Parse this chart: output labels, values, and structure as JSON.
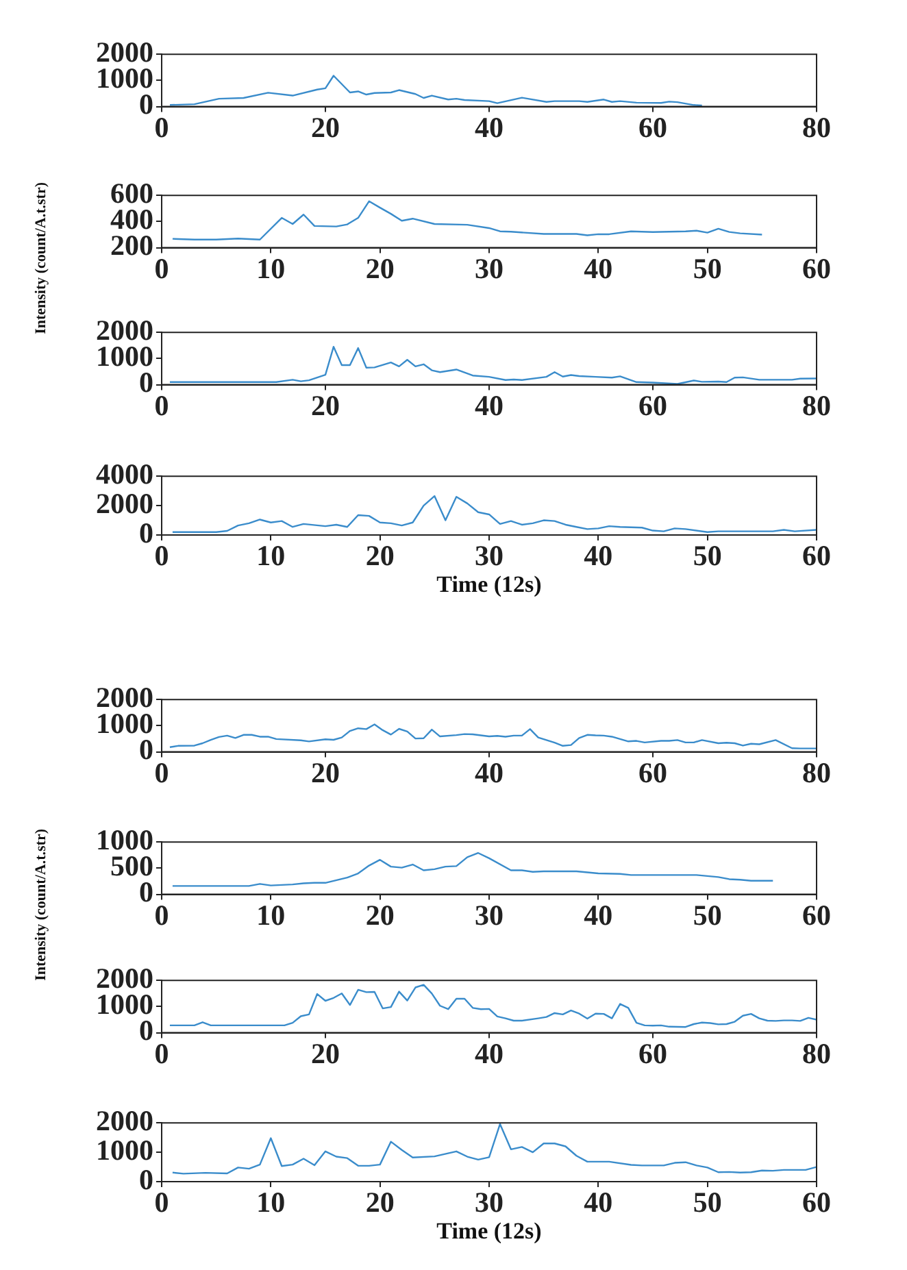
{
  "chart_data": [
    {
      "type": "line",
      "color": "#3a8ccb",
      "marker": "none",
      "grid": false,
      "legend": false,
      "xlim": [
        0,
        80
      ],
      "xticks": [
        0,
        20,
        40,
        60,
        80
      ],
      "ylim": [
        0,
        2000
      ],
      "yticks": [
        0,
        1000,
        2000
      ],
      "x": [
        1,
        4,
        7,
        10,
        13,
        16,
        19,
        20,
        21,
        23,
        24,
        25,
        26,
        28,
        29,
        31,
        32,
        33,
        35,
        36,
        37,
        40,
        41,
        44,
        47,
        48,
        51,
        52,
        54,
        55,
        56,
        58,
        61,
        62,
        63,
        65,
        66
      ],
      "values": [
        60,
        90,
        300,
        330,
        530,
        420,
        650,
        700,
        1180,
        540,
        580,
        460,
        520,
        540,
        630,
        480,
        330,
        420,
        270,
        300,
        250,
        210,
        130,
        340,
        180,
        210,
        210,
        180,
        270,
        180,
        210,
        150,
        140,
        190,
        170,
        60,
        40
      ]
    },
    {
      "type": "line",
      "color": "#3a8ccb",
      "marker": "none",
      "grid": false,
      "legend": false,
      "xlim": [
        0,
        60
      ],
      "xticks": [
        0,
        10,
        20,
        30,
        40,
        50,
        60
      ],
      "ylim": [
        200,
        600
      ],
      "yticks": [
        200,
        400,
        600
      ],
      "ylabel": "Intensity (count/A.t.str)",
      "x": [
        1,
        3,
        5,
        7,
        9,
        11,
        12,
        13,
        14,
        16,
        17,
        18,
        19,
        20,
        21,
        22,
        23,
        25,
        28,
        30,
        31,
        32,
        35,
        38,
        39,
        40,
        41,
        43,
        45,
        48,
        49,
        50,
        51,
        52,
        53,
        55
      ],
      "values": [
        268,
        262,
        262,
        270,
        262,
        428,
        381,
        453,
        366,
        362,
        378,
        428,
        555,
        506,
        459,
        406,
        422,
        381,
        375,
        350,
        325,
        322,
        305,
        305,
        295,
        303,
        303,
        325,
        320,
        325,
        330,
        315,
        345,
        320,
        310,
        300
      ]
    },
    {
      "type": "line",
      "color": "#3a8ccb",
      "marker": "none",
      "grid": false,
      "legend": false,
      "xlim": [
        0,
        80
      ],
      "xticks": [
        0,
        20,
        40,
        60,
        80
      ],
      "ylim": [
        0,
        2000
      ],
      "yticks": [
        0,
        1000,
        2000
      ],
      "x": [
        1,
        14,
        16,
        17,
        18,
        20,
        21,
        22,
        23,
        24,
        25,
        26,
        28,
        29,
        30,
        31,
        32,
        33,
        34,
        36,
        38,
        40,
        42,
        43,
        44,
        47,
        48,
        49,
        50,
        51,
        53,
        55,
        56,
        58,
        60,
        63,
        65,
        66,
        68,
        69,
        70,
        71,
        73,
        77,
        78,
        80
      ],
      "values": [
        100,
        100,
        190,
        130,
        170,
        380,
        1450,
        750,
        750,
        1400,
        650,
        660,
        850,
        700,
        950,
        700,
        780,
        550,
        480,
        580,
        350,
        300,
        180,
        200,
        180,
        300,
        480,
        310,
        370,
        330,
        300,
        270,
        320,
        100,
        80,
        30,
        160,
        110,
        120,
        100,
        270,
        280,
        190,
        190,
        230,
        240
      ]
    },
    {
      "type": "line",
      "color": "#3a8ccb",
      "marker": "none",
      "grid": false,
      "legend": false,
      "xlim": [
        0,
        60
      ],
      "xticks": [
        0,
        10,
        20,
        30,
        40,
        50,
        60
      ],
      "ylim": [
        0,
        4000
      ],
      "yticks": [
        0,
        2000,
        4000
      ],
      "xlabel": "Time (12s)",
      "x": [
        1,
        5,
        6,
        7,
        8,
        9,
        10,
        11,
        12,
        13,
        15,
        16,
        17,
        18,
        19,
        20,
        21,
        22,
        23,
        24,
        25,
        26,
        27,
        28,
        29,
        30,
        31,
        32,
        33,
        34,
        35,
        36,
        37,
        38,
        39,
        40,
        41,
        42,
        44,
        45,
        46,
        47,
        48,
        50,
        51,
        56,
        57,
        58,
        60
      ],
      "values": [
        200,
        200,
        280,
        650,
        800,
        1050,
        850,
        950,
        550,
        750,
        600,
        700,
        550,
        1350,
        1300,
        850,
        800,
        650,
        850,
        2000,
        2650,
        1000,
        2600,
        2150,
        1550,
        1400,
        750,
        950,
        700,
        800,
        1000,
        950,
        700,
        550,
        400,
        450,
        600,
        550,
        500,
        300,
        250,
        450,
        400,
        200,
        250,
        250,
        350,
        250,
        350
      ]
    },
    {
      "type": "line",
      "color": "#3a8ccb",
      "marker": "none",
      "grid": false,
      "legend": false,
      "xlim": [
        0,
        80
      ],
      "xticks": [
        0,
        20,
        40,
        60,
        80
      ],
      "ylim": [
        0,
        2000
      ],
      "yticks": [
        0,
        1000,
        2000
      ],
      "x": [
        1,
        2,
        4,
        5,
        6,
        7,
        8,
        9,
        10,
        11,
        12,
        13,
        14,
        17,
        18,
        20,
        21,
        22,
        23,
        24,
        25,
        26,
        27,
        28,
        29,
        30,
        31,
        32,
        33,
        34,
        36,
        37,
        38,
        40,
        41,
        42,
        43,
        44,
        45,
        46,
        48,
        49,
        50,
        51,
        52,
        53,
        54,
        55,
        57,
        58,
        59,
        61,
        62,
        63,
        64,
        65,
        66,
        68,
        69,
        70,
        71,
        72,
        73,
        75,
        77,
        78,
        80
      ],
      "values": [
        180,
        230,
        240,
        330,
        460,
        570,
        620,
        530,
        650,
        650,
        580,
        580,
        490,
        440,
        400,
        480,
        460,
        550,
        800,
        900,
        870,
        1050,
        830,
        660,
        880,
        780,
        510,
        520,
        850,
        590,
        640,
        680,
        670,
        590,
        610,
        580,
        620,
        620,
        870,
        550,
        350,
        230,
        260,
        530,
        650,
        630,
        620,
        580,
        400,
        420,
        360,
        420,
        420,
        450,
        360,
        360,
        450,
        330,
        350,
        330,
        240,
        310,
        290,
        450,
        140,
        130,
        130
      ]
    },
    {
      "type": "line",
      "color": "#3a8ccb",
      "marker": "none",
      "grid": false,
      "legend": false,
      "xlim": [
        0,
        60
      ],
      "xticks": [
        0,
        10,
        20,
        30,
        40,
        50,
        60
      ],
      "ylim": [
        0,
        1000
      ],
      "yticks": [
        0,
        500,
        1000
      ],
      "ylabel": "Intensity (count/A.t.str)",
      "x": [
        1,
        8,
        9,
        10,
        12,
        13,
        14,
        15,
        17,
        18,
        19,
        20,
        21,
        22,
        23,
        24,
        25,
        26,
        27,
        28,
        29,
        30,
        32,
        33,
        34,
        35,
        38,
        40,
        42,
        43,
        49,
        51,
        52,
        53,
        54,
        56
      ],
      "values": [
        160,
        160,
        200,
        170,
        190,
        210,
        220,
        220,
        320,
        400,
        550,
        660,
        530,
        510,
        570,
        460,
        480,
        530,
        540,
        710,
        790,
        690,
        460,
        460,
        430,
        440,
        440,
        400,
        390,
        370,
        370,
        330,
        290,
        280,
        260,
        260
      ]
    },
    {
      "type": "line",
      "color": "#3a8ccb",
      "marker": "none",
      "grid": false,
      "legend": false,
      "xlim": [
        0,
        80
      ],
      "xticks": [
        0,
        20,
        40,
        60,
        80
      ],
      "ylim": [
        0,
        2000
      ],
      "yticks": [
        0,
        1000,
        2000
      ],
      "x": [
        1,
        4,
        5,
        6,
        15,
        16,
        17,
        18,
        19,
        20,
        21,
        22,
        23,
        24,
        25,
        26,
        27,
        28,
        29,
        30,
        31,
        32,
        33,
        34,
        35,
        36,
        37,
        38,
        39,
        40,
        41,
        42,
        43,
        44,
        46,
        47,
        48,
        49,
        50,
        51,
        52,
        53,
        54,
        55,
        56,
        57,
        58,
        59,
        60,
        61,
        62,
        64,
        65,
        66,
        67,
        68,
        69,
        70,
        71,
        72,
        73,
        74,
        75,
        76,
        77,
        78,
        79,
        80
      ],
      "values": [
        280,
        280,
        400,
        280,
        280,
        380,
        630,
        700,
        1480,
        1220,
        1330,
        1500,
        1060,
        1640,
        1550,
        1560,
        930,
        980,
        1570,
        1230,
        1730,
        1830,
        1500,
        1030,
        900,
        1300,
        1300,
        950,
        900,
        910,
        620,
        550,
        460,
        460,
        550,
        600,
        750,
        700,
        850,
        730,
        540,
        730,
        720,
        550,
        1100,
        950,
        380,
        280,
        270,
        280,
        230,
        220,
        330,
        390,
        370,
        320,
        330,
        420,
        650,
        720,
        550,
        460,
        450,
        470,
        470,
        450,
        570,
        500
      ]
    },
    {
      "type": "line",
      "color": "#3a8ccb",
      "marker": "none",
      "grid": false,
      "legend": false,
      "xlim": [
        0,
        60
      ],
      "xticks": [
        0,
        10,
        20,
        30,
        40,
        50,
        60
      ],
      "ylim": [
        0,
        2000
      ],
      "yticks": [
        0,
        1000,
        2000
      ],
      "xlabel": "Time (12s)",
      "x": [
        1,
        2,
        4,
        6,
        7,
        8,
        9,
        10,
        11,
        12,
        13,
        14,
        15,
        16,
        17,
        18,
        19,
        20,
        21,
        22,
        23,
        25,
        27,
        28,
        29,
        30,
        31,
        32,
        33,
        34,
        35,
        36,
        37,
        38,
        39,
        41,
        43,
        44,
        46,
        47,
        48,
        49,
        50,
        51,
        52,
        53,
        54,
        55,
        56,
        57,
        59,
        60
      ],
      "values": [
        310,
        270,
        300,
        280,
        480,
        440,
        580,
        1480,
        530,
        580,
        780,
        560,
        1030,
        850,
        800,
        540,
        540,
        580,
        1360,
        1080,
        820,
        860,
        1030,
        850,
        750,
        830,
        1960,
        1100,
        1180,
        1000,
        1300,
        1300,
        1200,
        880,
        680,
        680,
        570,
        550,
        550,
        640,
        660,
        550,
        480,
        320,
        330,
        310,
        320,
        380,
        370,
        400,
        400,
        500
      ]
    }
  ]
}
